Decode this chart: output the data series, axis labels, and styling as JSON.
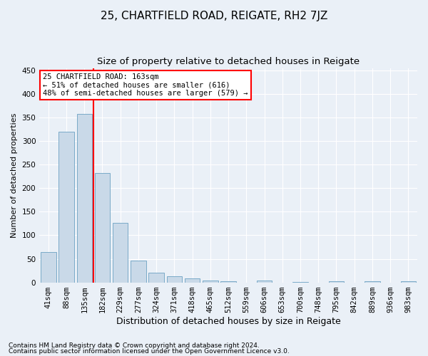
{
  "title1": "25, CHARTFIELD ROAD, REIGATE, RH2 7JZ",
  "title2": "Size of property relative to detached houses in Reigate",
  "xlabel": "Distribution of detached houses by size in Reigate",
  "ylabel": "Number of detached properties",
  "footnote1": "Contains HM Land Registry data © Crown copyright and database right 2024.",
  "footnote2": "Contains public sector information licensed under the Open Government Licence v3.0.",
  "bar_labels": [
    "41sqm",
    "88sqm",
    "135sqm",
    "182sqm",
    "229sqm",
    "277sqm",
    "324sqm",
    "371sqm",
    "418sqm",
    "465sqm",
    "512sqm",
    "559sqm",
    "606sqm",
    "653sqm",
    "700sqm",
    "748sqm",
    "795sqm",
    "842sqm",
    "889sqm",
    "936sqm",
    "983sqm"
  ],
  "bar_values": [
    65,
    320,
    358,
    232,
    126,
    46,
    21,
    13,
    8,
    4,
    2,
    0,
    4,
    0,
    1,
    0,
    3,
    0,
    3,
    0,
    3
  ],
  "bar_color": "#c9d9e8",
  "bar_edge_color": "#7aaac8",
  "annotation_text": "25 CHARTFIELD ROAD: 163sqm\n← 51% of detached houses are smaller (616)\n48% of semi-detached houses are larger (579) →",
  "annotation_box_color": "white",
  "annotation_box_edge_color": "red",
  "vline_color": "red",
  "vline_x_index": 2.5,
  "ylim": [
    0,
    455
  ],
  "yticks": [
    0,
    50,
    100,
    150,
    200,
    250,
    300,
    350,
    400,
    450
  ],
  "background_color": "#eaf0f7",
  "plot_bg_color": "#eaf0f7",
  "grid_color": "white",
  "title1_fontsize": 11,
  "title2_fontsize": 9.5,
  "xlabel_fontsize": 9,
  "ylabel_fontsize": 8,
  "tick_fontsize": 7.5,
  "footnote_fontsize": 6.5
}
